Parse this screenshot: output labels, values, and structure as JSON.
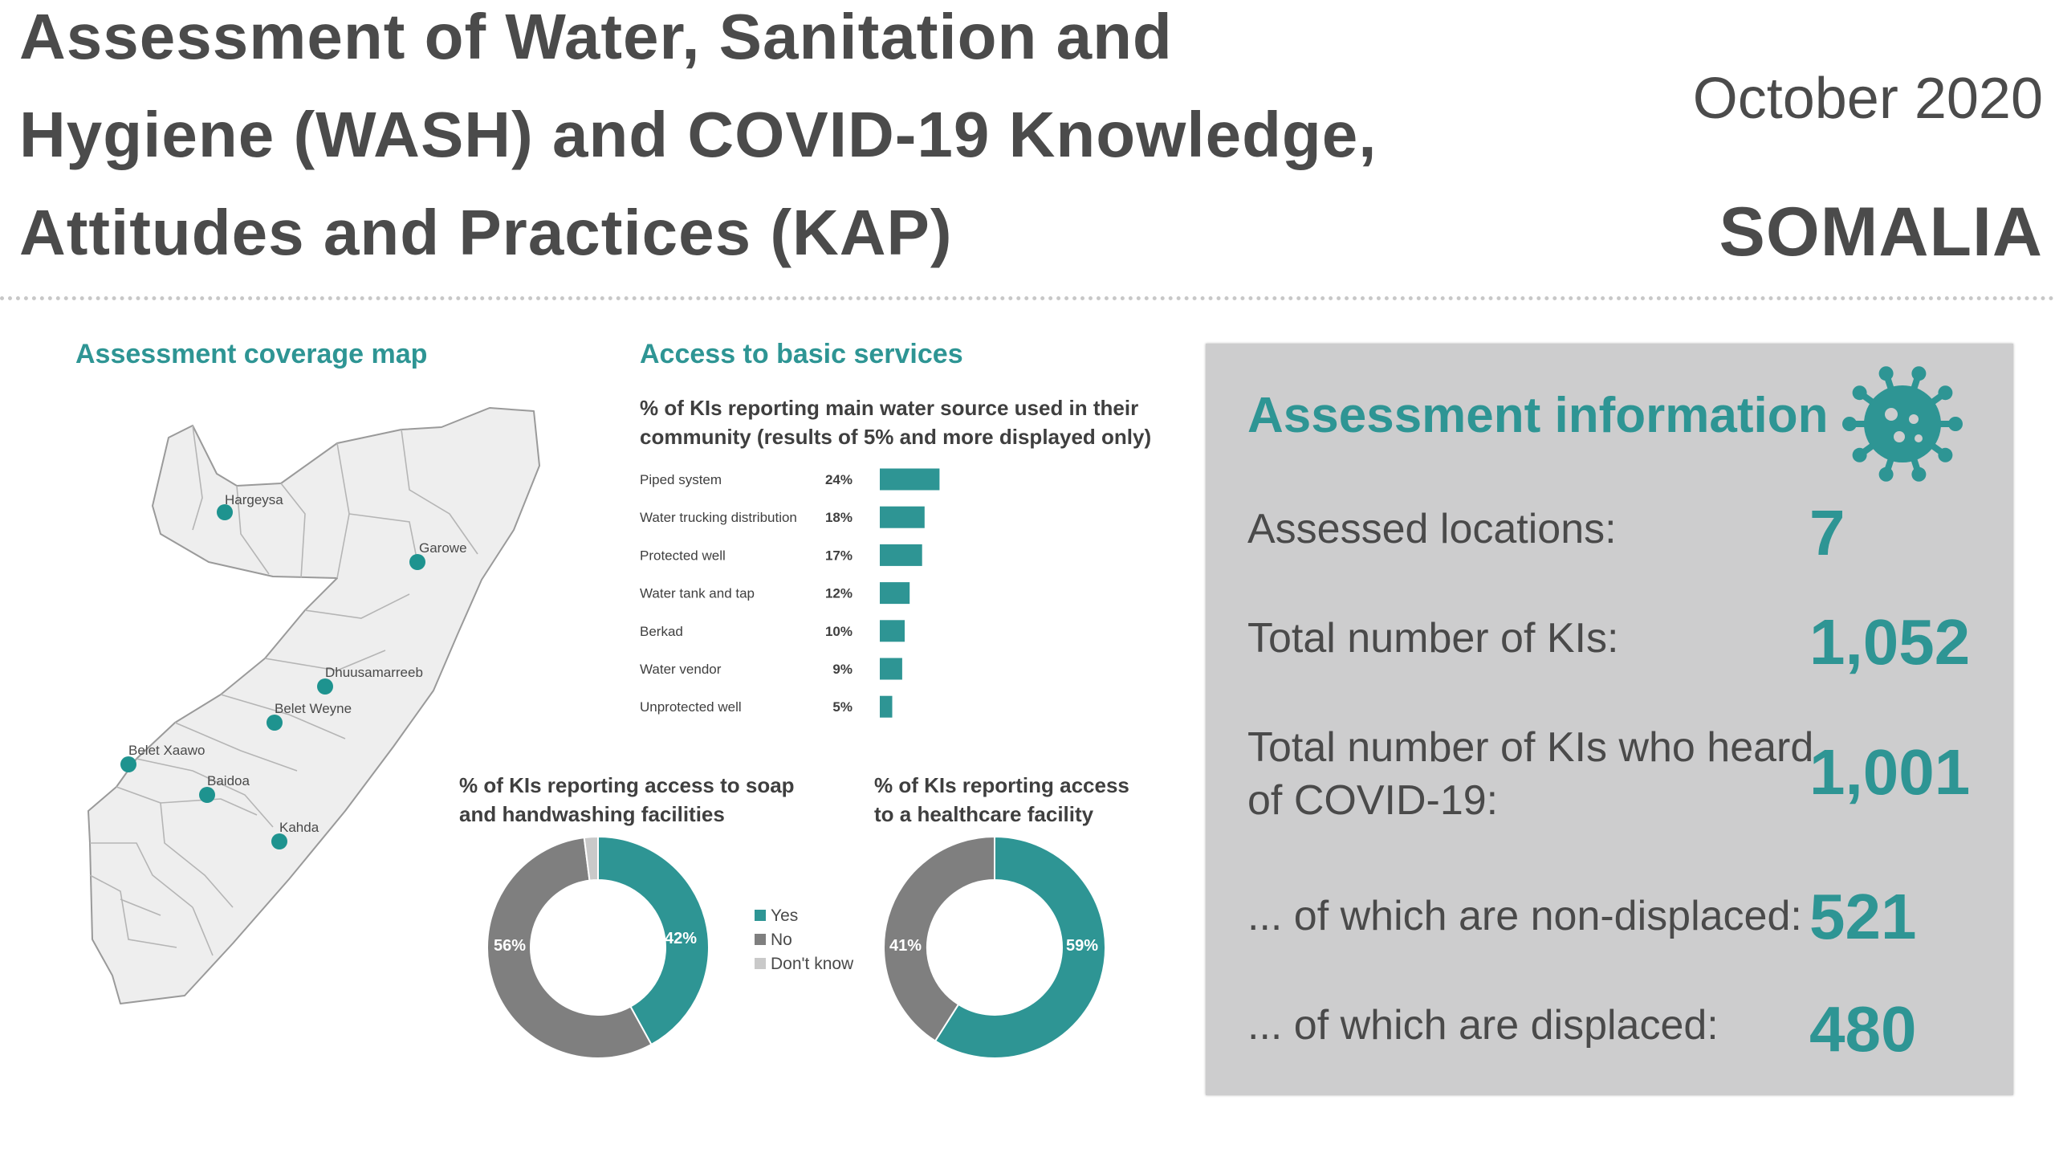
{
  "header": {
    "title_lines": [
      "Assessment of Water, Sanitation and",
      "Hygiene (WASH) and COVID-19 Knowledge,",
      "Attitudes and Practices (KAP)"
    ],
    "date": "October 2020",
    "country": "SOMALIA"
  },
  "map": {
    "title": "Assessment coverage map",
    "locations": [
      "Hargeysa",
      "Garowe",
      "Dhuusamarreeb",
      "Belet Weyne",
      "Belet Xaawo",
      "Baidoa",
      "Kahda"
    ],
    "marker_color": "#1e938f"
  },
  "services": {
    "title": "Access to basic services",
    "bar_heading_lines": [
      "% of KIs reporting main water source used in their",
      "community (results of 5% and more displayed only)"
    ],
    "soap_heading_lines": [
      "% of KIs reporting access to soap",
      "and handwashing facilities"
    ],
    "health_heading_lines": [
      "% of KIs reporting access",
      "to a healthcare facility"
    ]
  },
  "colors": {
    "teal": "#2e9594",
    "grey": "#7f7f7f",
    "light_grey": "#c9c9c9",
    "panel": "#cdcdce"
  },
  "chart_data": [
    {
      "type": "bar",
      "orientation": "horizontal",
      "categories": [
        "Piped system",
        "Water trucking distribution",
        "Protected well",
        "Water tank and tap",
        "Berkad",
        "Water vendor",
        "Unprotected well"
      ],
      "values": [
        24,
        18,
        17,
        12,
        10,
        9,
        5
      ],
      "value_labels": [
        "24%",
        "18%",
        "17%",
        "12%",
        "10%",
        "9%",
        "5%"
      ],
      "title": "% of KIs reporting main water source used in their community (results of 5% and more displayed only)",
      "color": "#2e9594"
    },
    {
      "type": "pie",
      "variant": "donut",
      "title": "% of KIs reporting access to soap and handwashing facilities",
      "categories": [
        "Yes",
        "No",
        "Don't know"
      ],
      "values": [
        42,
        56,
        2
      ],
      "value_labels": [
        "42%",
        "56%",
        ""
      ],
      "colors": [
        "#2e9594",
        "#7f7f7f",
        "#c9c9c9"
      ]
    },
    {
      "type": "pie",
      "variant": "donut",
      "title": "% of KIs reporting access to a healthcare facility",
      "categories": [
        "Yes",
        "No"
      ],
      "values": [
        59,
        41
      ],
      "value_labels": [
        "59%",
        "41%"
      ],
      "colors": [
        "#2e9594",
        "#7f7f7f"
      ]
    }
  ],
  "legend": {
    "items": [
      "Yes",
      "No",
      "Don't know"
    ]
  },
  "assessment_info": {
    "title": "Assessment information",
    "icon": "virus-icon",
    "rows": [
      {
        "label_lines": [
          "Assessed locations:"
        ],
        "value": "7"
      },
      {
        "label_lines": [
          "Total number of KIs:"
        ],
        "value": "1,052"
      },
      {
        "label_lines": [
          "Total number of KIs who heard",
          "of COVID-19:"
        ],
        "value": "1,001"
      },
      {
        "label_lines": [
          "... of which are non-displaced:"
        ],
        "value": "521"
      },
      {
        "label_lines": [
          "... of which are displaced:"
        ],
        "value": "480"
      }
    ]
  }
}
